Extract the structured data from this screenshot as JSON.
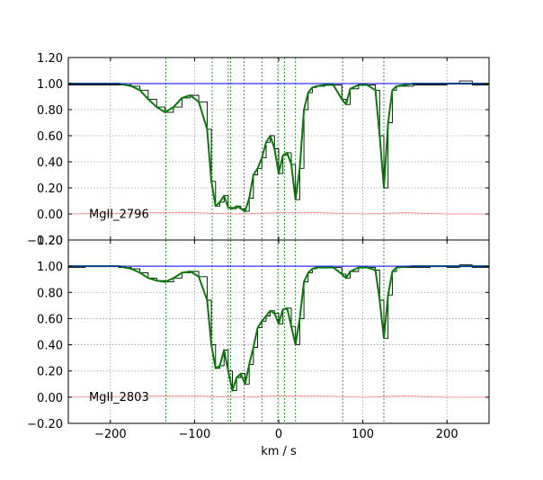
{
  "chart_data": [
    {
      "type": "line",
      "title": "",
      "xlabel": "",
      "ylabel": "",
      "ion_label": "MgII_2796",
      "xlim": [
        -250,
        250
      ],
      "ylim": [
        -0.2,
        1.2
      ],
      "x_ticks": [
        -200,
        -100,
        0,
        100,
        200
      ],
      "y_ticks": [
        -0.2,
        0.0,
        0.2,
        0.4,
        0.6,
        0.8,
        1.0,
        1.2
      ],
      "y_tick_labels": [
        "−0.20",
        "0.00",
        "0.20",
        "0.40",
        "0.60",
        "0.80",
        "1.00",
        "1.20"
      ],
      "grid": true,
      "component_markers_kms": [
        -134,
        -79,
        -60,
        -57,
        -41,
        -20,
        -1,
        7,
        20,
        76,
        125
      ],
      "series": [
        {
          "role": "data-flux",
          "color": "#000000",
          "x": [
            -250,
            -230,
            -210,
            -190,
            -175,
            -165,
            -155,
            -145,
            -135,
            -125,
            -115,
            -105,
            -95,
            -85,
            -80,
            -75,
            -70,
            -65,
            -60,
            -55,
            -50,
            -45,
            -40,
            -35,
            -30,
            -25,
            -20,
            -15,
            -10,
            -5,
            0,
            5,
            10,
            15,
            20,
            25,
            30,
            35,
            40,
            45,
            55,
            65,
            75,
            80,
            85,
            95,
            105,
            115,
            120,
            125,
            130,
            135,
            140,
            160,
            180,
            200,
            215,
            230,
            250
          ],
          "y": [
            0.99,
            0.99,
            0.99,
            0.99,
            0.98,
            0.95,
            0.88,
            0.82,
            0.78,
            0.82,
            0.89,
            0.91,
            0.86,
            0.65,
            0.25,
            0.06,
            0.09,
            0.14,
            0.05,
            0.04,
            0.06,
            0.04,
            0.02,
            0.12,
            0.3,
            0.35,
            0.43,
            0.55,
            0.6,
            0.5,
            0.31,
            0.45,
            0.47,
            0.38,
            0.11,
            0.35,
            0.8,
            0.93,
            0.97,
            0.98,
            0.99,
            0.99,
            0.88,
            0.84,
            0.96,
            0.99,
            0.99,
            0.95,
            0.6,
            0.2,
            0.7,
            0.95,
            0.98,
            0.99,
            0.99,
            1.0,
            1.02,
            0.99,
            0.99
          ]
        },
        {
          "role": "model-fit",
          "color": "#008000",
          "x": [
            -250,
            -230,
            -210,
            -190,
            -175,
            -165,
            -155,
            -145,
            -135,
            -125,
            -115,
            -105,
            -95,
            -85,
            -80,
            -75,
            -70,
            -65,
            -60,
            -55,
            -50,
            -45,
            -40,
            -35,
            -30,
            -25,
            -20,
            -15,
            -10,
            -5,
            0,
            5,
            10,
            15,
            20,
            25,
            30,
            35,
            40,
            45,
            55,
            65,
            75,
            80,
            85,
            95,
            105,
            115,
            120,
            125,
            130,
            135,
            140,
            160,
            180,
            200,
            215,
            230,
            250
          ],
          "y": [
            1.0,
            1.0,
            1.0,
            1.0,
            0.98,
            0.95,
            0.88,
            0.82,
            0.78,
            0.82,
            0.89,
            0.91,
            0.86,
            0.65,
            0.25,
            0.06,
            0.09,
            0.14,
            0.05,
            0.04,
            0.06,
            0.04,
            0.02,
            0.12,
            0.3,
            0.35,
            0.43,
            0.55,
            0.6,
            0.5,
            0.31,
            0.45,
            0.47,
            0.38,
            0.11,
            0.35,
            0.8,
            0.93,
            0.97,
            0.98,
            0.99,
            0.99,
            0.88,
            0.84,
            0.96,
            0.99,
            0.99,
            0.95,
            0.6,
            0.2,
            0.7,
            0.95,
            0.98,
            1.0,
            1.0,
            1.0,
            1.0,
            1.0,
            1.0
          ]
        },
        {
          "role": "continuum",
          "color": "#0000ff",
          "x": [
            -250,
            250
          ],
          "y": [
            1.0,
            1.0
          ]
        },
        {
          "role": "error",
          "color": "#ff8080",
          "x": [
            -250,
            -150,
            -100,
            -50,
            0,
            50,
            100,
            150,
            200,
            250
          ],
          "y": [
            0.0,
            0.01,
            0.01,
            0.0,
            0.01,
            0.01,
            0.0,
            0.01,
            0.0,
            0.0
          ]
        }
      ]
    },
    {
      "type": "line",
      "title": "",
      "xlabel": "km / s",
      "ylabel": "",
      "ion_label": "MgII_2803",
      "xlim": [
        -250,
        250
      ],
      "ylim": [
        -0.2,
        1.2
      ],
      "x_ticks": [
        -200,
        -100,
        0,
        100,
        200
      ],
      "x_tick_labels": [
        "−200",
        "−100",
        "0",
        "100",
        "200"
      ],
      "y_ticks": [
        -0.2,
        0.0,
        0.2,
        0.4,
        0.6,
        0.8,
        1.0,
        1.2
      ],
      "y_tick_labels": [
        "−0.20",
        "0.00",
        "0.20",
        "0.40",
        "0.60",
        "0.80",
        "1.00",
        "1.20"
      ],
      "grid": true,
      "component_markers_kms": [
        -134,
        -79,
        -60,
        -57,
        -41,
        -20,
        -1,
        7,
        20,
        76,
        125
      ],
      "series": [
        {
          "role": "data-flux",
          "color": "#000000",
          "x": [
            -250,
            -230,
            -210,
            -190,
            -175,
            -165,
            -155,
            -145,
            -135,
            -125,
            -115,
            -105,
            -95,
            -85,
            -80,
            -75,
            -70,
            -65,
            -60,
            -55,
            -50,
            -45,
            -40,
            -35,
            -30,
            -25,
            -20,
            -15,
            -10,
            -5,
            0,
            5,
            10,
            15,
            20,
            25,
            30,
            35,
            40,
            45,
            55,
            65,
            75,
            80,
            85,
            95,
            105,
            115,
            120,
            125,
            130,
            135,
            140,
            160,
            180,
            200,
            215,
            230,
            250
          ],
          "y": [
            0.99,
            1.0,
            1.0,
            0.99,
            0.98,
            0.95,
            0.91,
            0.89,
            0.88,
            0.91,
            0.95,
            0.96,
            0.92,
            0.74,
            0.4,
            0.22,
            0.24,
            0.36,
            0.2,
            0.05,
            0.15,
            0.18,
            0.1,
            0.25,
            0.38,
            0.53,
            0.58,
            0.62,
            0.66,
            0.64,
            0.56,
            0.67,
            0.68,
            0.54,
            0.4,
            0.6,
            0.88,
            0.95,
            0.98,
            0.99,
            0.99,
            0.99,
            0.94,
            0.91,
            0.96,
            0.99,
            0.99,
            0.97,
            0.74,
            0.45,
            0.78,
            0.96,
            0.99,
            0.99,
            1.0,
            0.99,
            1.01,
            0.99,
            0.99
          ]
        },
        {
          "role": "model-fit",
          "color": "#008000",
          "x": [
            -250,
            -230,
            -210,
            -190,
            -175,
            -165,
            -155,
            -145,
            -135,
            -125,
            -115,
            -105,
            -95,
            -85,
            -80,
            -75,
            -70,
            -65,
            -60,
            -55,
            -50,
            -45,
            -40,
            -35,
            -30,
            -25,
            -20,
            -15,
            -10,
            -5,
            0,
            5,
            10,
            15,
            20,
            25,
            30,
            35,
            40,
            45,
            55,
            65,
            75,
            80,
            85,
            95,
            105,
            115,
            120,
            125,
            130,
            135,
            140,
            160,
            180,
            200,
            215,
            230,
            250
          ],
          "y": [
            1.0,
            1.0,
            1.0,
            1.0,
            0.98,
            0.95,
            0.91,
            0.89,
            0.88,
            0.91,
            0.95,
            0.96,
            0.92,
            0.74,
            0.4,
            0.22,
            0.24,
            0.36,
            0.2,
            0.05,
            0.15,
            0.18,
            0.1,
            0.25,
            0.38,
            0.53,
            0.58,
            0.62,
            0.66,
            0.64,
            0.56,
            0.67,
            0.68,
            0.54,
            0.4,
            0.6,
            0.88,
            0.95,
            0.98,
            0.99,
            0.99,
            0.99,
            0.94,
            0.91,
            0.96,
            0.99,
            0.99,
            0.97,
            0.74,
            0.45,
            0.78,
            0.96,
            0.99,
            1.0,
            1.0,
            1.0,
            1.0,
            1.0,
            1.0
          ]
        },
        {
          "role": "continuum",
          "color": "#0000ff",
          "x": [
            -250,
            250
          ],
          "y": [
            1.0,
            1.0
          ]
        },
        {
          "role": "error",
          "color": "#ff8080",
          "x": [
            -250,
            -150,
            -100,
            -50,
            0,
            50,
            100,
            150,
            200,
            250
          ],
          "y": [
            0.0,
            0.01,
            0.01,
            0.0,
            0.01,
            0.01,
            0.0,
            0.01,
            0.0,
            0.0
          ]
        }
      ]
    }
  ]
}
